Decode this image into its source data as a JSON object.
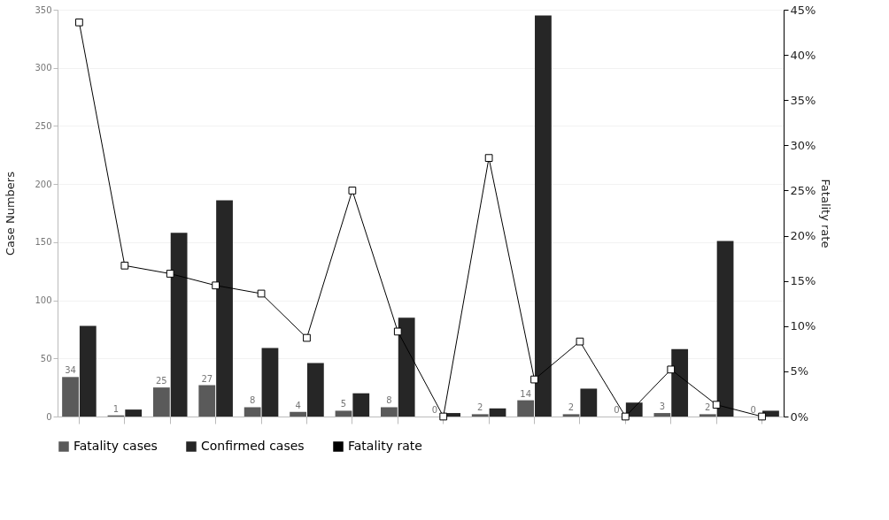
{
  "chart_data": {
    "type": "bar",
    "ylabel": "Case Numbers",
    "y2label": "Fatality rate",
    "categories": [
      null,
      null,
      null,
      null,
      null,
      null,
      null,
      null,
      null,
      null,
      null,
      null,
      null,
      null,
      null,
      null
    ],
    "series": [
      {
        "name": "Fatality cases",
        "color": "#5a5a5a",
        "values": [
          34,
          1,
          25,
          27,
          8,
          4,
          5,
          8,
          0,
          2,
          14,
          2,
          0,
          3,
          2,
          0
        ],
        "data_labels": true
      },
      {
        "name": "Confirmed cases",
        "color": "#262626",
        "values": [
          78,
          6,
          158,
          186,
          59,
          46,
          20,
          85,
          3,
          7,
          345,
          24,
          12,
          58,
          151,
          5
        ]
      },
      {
        "name": "Fatality rate",
        "type": "line",
        "axis": "y2",
        "color": "#000000",
        "marker": "square",
        "values": [
          43.6,
          16.7,
          15.8,
          14.5,
          13.6,
          8.7,
          25.0,
          9.4,
          0,
          28.6,
          4.1,
          8.3,
          0,
          5.2,
          1.3,
          0
        ]
      }
    ],
    "ylim": [
      0,
      350
    ],
    "yticks": [
      0,
      50,
      100,
      150,
      200,
      250,
      300,
      350
    ],
    "y2lim": [
      0,
      45
    ],
    "y2ticks": [
      {
        "value": 0,
        "label": "0%"
      },
      {
        "value": 5,
        "label": "5%"
      },
      {
        "value": 10,
        "label": "10%"
      },
      {
        "value": 15,
        "label": "15%"
      },
      {
        "value": 20,
        "label": "20%"
      },
      {
        "value": 25,
        "label": "25%"
      },
      {
        "value": 30,
        "label": "30%"
      },
      {
        "value": 35,
        "label": "35%"
      },
      {
        "value": 40,
        "label": "40%"
      },
      {
        "value": 45,
        "label": "45%"
      }
    ],
    "grid": "y",
    "legend": "bottom left",
    "tick_labels": "y"
  }
}
